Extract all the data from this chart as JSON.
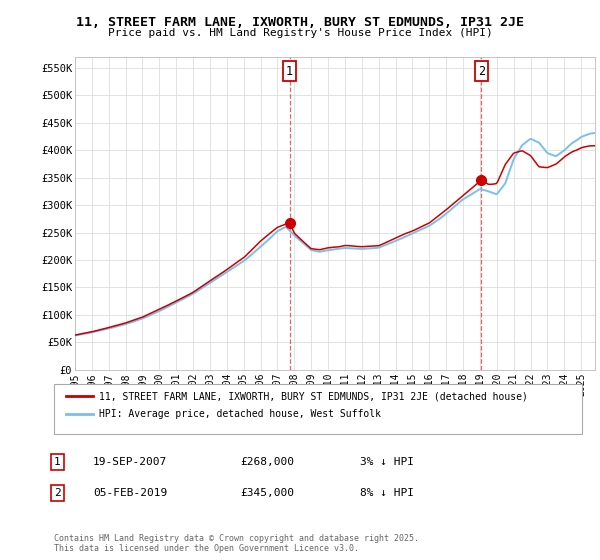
{
  "title": "11, STREET FARM LANE, IXWORTH, BURY ST EDMUNDS, IP31 2JE",
  "subtitle": "Price paid vs. HM Land Registry's House Price Index (HPI)",
  "ylabel_ticks": [
    "£0",
    "£50K",
    "£100K",
    "£150K",
    "£200K",
    "£250K",
    "£300K",
    "£350K",
    "£400K",
    "£450K",
    "£500K",
    "£550K"
  ],
  "ytick_values": [
    0,
    50000,
    100000,
    150000,
    200000,
    250000,
    300000,
    350000,
    400000,
    450000,
    500000,
    550000
  ],
  "ylim": [
    0,
    570000
  ],
  "xlim_start": 1995.0,
  "xlim_end": 2025.83,
  "sale1_x": 2007.72,
  "sale1_y": 268000,
  "sale1_label": "19-SEP-2007",
  "sale1_price": "£268,000",
  "sale1_note": "3% ↓ HPI",
  "sale2_x": 2019.09,
  "sale2_y": 345000,
  "sale2_label": "05-FEB-2019",
  "sale2_price": "£345,000",
  "sale2_note": "8% ↓ HPI",
  "legend_line1": "11, STREET FARM LANE, IXWORTH, BURY ST EDMUNDS, IP31 2JE (detached house)",
  "legend_line2": "HPI: Average price, detached house, West Suffolk",
  "footer": "Contains HM Land Registry data © Crown copyright and database right 2025.\nThis data is licensed under the Open Government Licence v3.0.",
  "line_color_house": "#cc0000",
  "line_color_hpi": "#7bbfea",
  "bg_color": "#ffffff",
  "grid_color": "#dddddd",
  "annotation_box_color": "#cc0000",
  "hpi_anchors_x": [
    1995,
    1996,
    1997,
    1998,
    1999,
    2000,
    2001,
    2002,
    2003,
    2004,
    2005,
    2006,
    2007,
    2007.5,
    2008,
    2009,
    2009.5,
    2010,
    2011,
    2012,
    2013,
    2014,
    2015,
    2016,
    2017,
    2018,
    2018.5,
    2019,
    2020,
    2020.5,
    2021,
    2021.5,
    2022,
    2022.5,
    2023,
    2023.5,
    2024,
    2024.5,
    2025,
    2025.5
  ],
  "hpi_anchors_y": [
    62000,
    68000,
    75000,
    83000,
    93000,
    107000,
    122000,
    138000,
    158000,
    178000,
    198000,
    225000,
    252000,
    260000,
    245000,
    218000,
    215000,
    218000,
    222000,
    220000,
    222000,
    235000,
    248000,
    262000,
    285000,
    310000,
    320000,
    330000,
    320000,
    340000,
    385000,
    410000,
    420000,
    415000,
    395000,
    390000,
    400000,
    415000,
    425000,
    430000
  ],
  "house_anchors_x": [
    1995,
    1996,
    1997,
    1998,
    1999,
    2000,
    2001,
    2002,
    2003,
    2004,
    2005,
    2006,
    2007,
    2007.72,
    2008,
    2009,
    2009.5,
    2010,
    2011,
    2012,
    2013,
    2014,
    2015,
    2016,
    2017,
    2018,
    2018.5,
    2019.09,
    2019.5,
    2020,
    2020.5,
    2021,
    2021.5,
    2022,
    2022.5,
    2023,
    2023.5,
    2024,
    2024.5,
    2025,
    2025.5
  ],
  "house_anchors_y": [
    63000,
    69000,
    77000,
    85000,
    96000,
    110000,
    125000,
    141000,
    162000,
    183000,
    204000,
    235000,
    260000,
    268000,
    248000,
    220000,
    218000,
    222000,
    226000,
    224000,
    226000,
    240000,
    253000,
    268000,
    292000,
    318000,
    330000,
    345000,
    338000,
    340000,
    375000,
    395000,
    400000,
    390000,
    370000,
    368000,
    375000,
    388000,
    398000,
    405000,
    408000
  ]
}
